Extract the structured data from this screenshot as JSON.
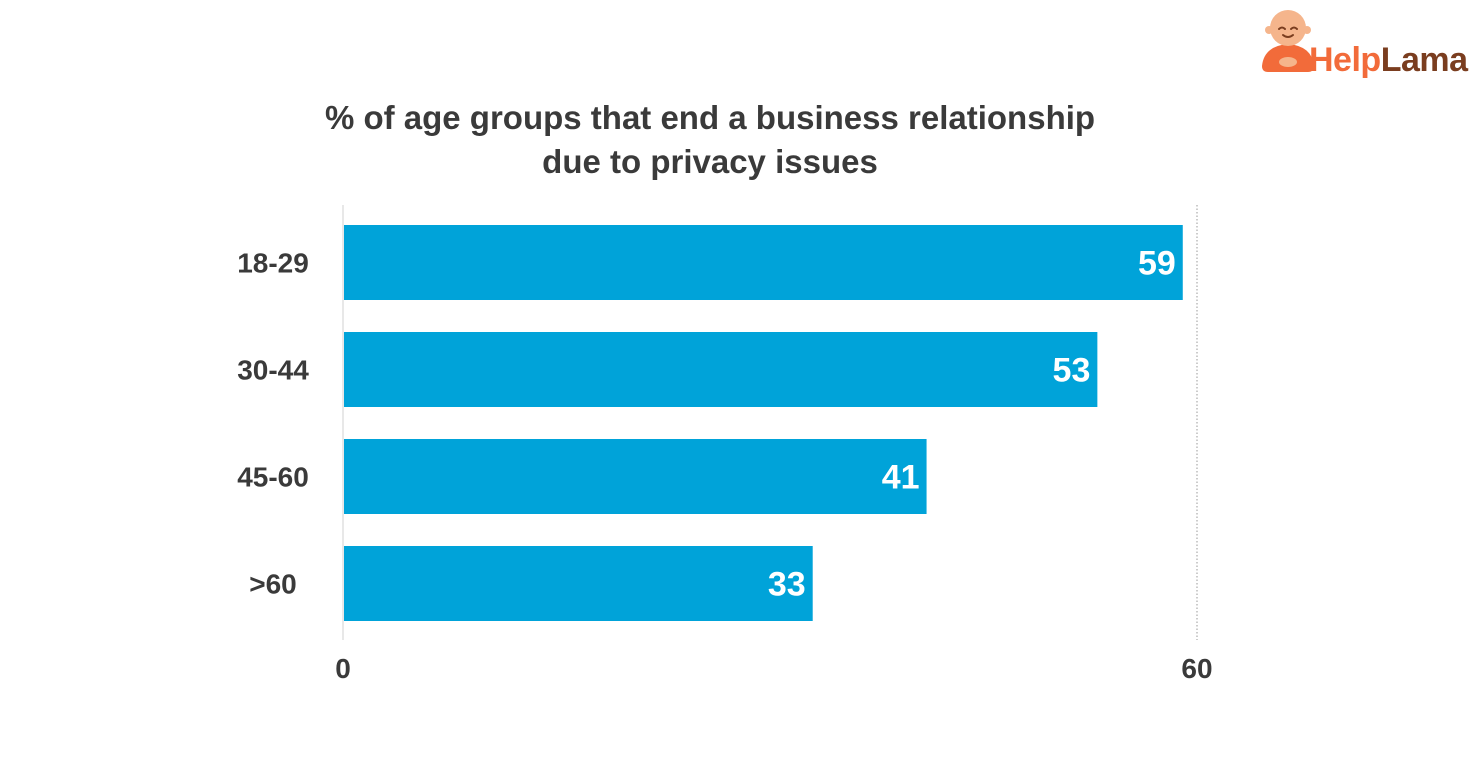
{
  "brand": {
    "name_part1": "Help",
    "name_part2": "Lama",
    "colors": {
      "help": "#f26b3a",
      "lama": "#7a3d1f",
      "mascot_skin": "#f5b58c",
      "mascot_robe": "#f26b3a"
    },
    "icon": "lama-mascot-icon"
  },
  "chart_data": {
    "type": "bar",
    "orientation": "horizontal",
    "title_line1": "% of age groups that end a business relationship",
    "title_line2": "due to privacy issues",
    "categories": [
      "18-29",
      "30-44",
      "45-60",
      ">60"
    ],
    "values": [
      59,
      53,
      41,
      33
    ],
    "value_labels": [
      "59",
      "53",
      "41",
      "33"
    ],
    "xlim": [
      0,
      60
    ],
    "x_ticks": [
      "0",
      "60"
    ],
    "xlabel": "",
    "ylabel": "",
    "bar_color": "#00a3d9",
    "grid": false
  }
}
